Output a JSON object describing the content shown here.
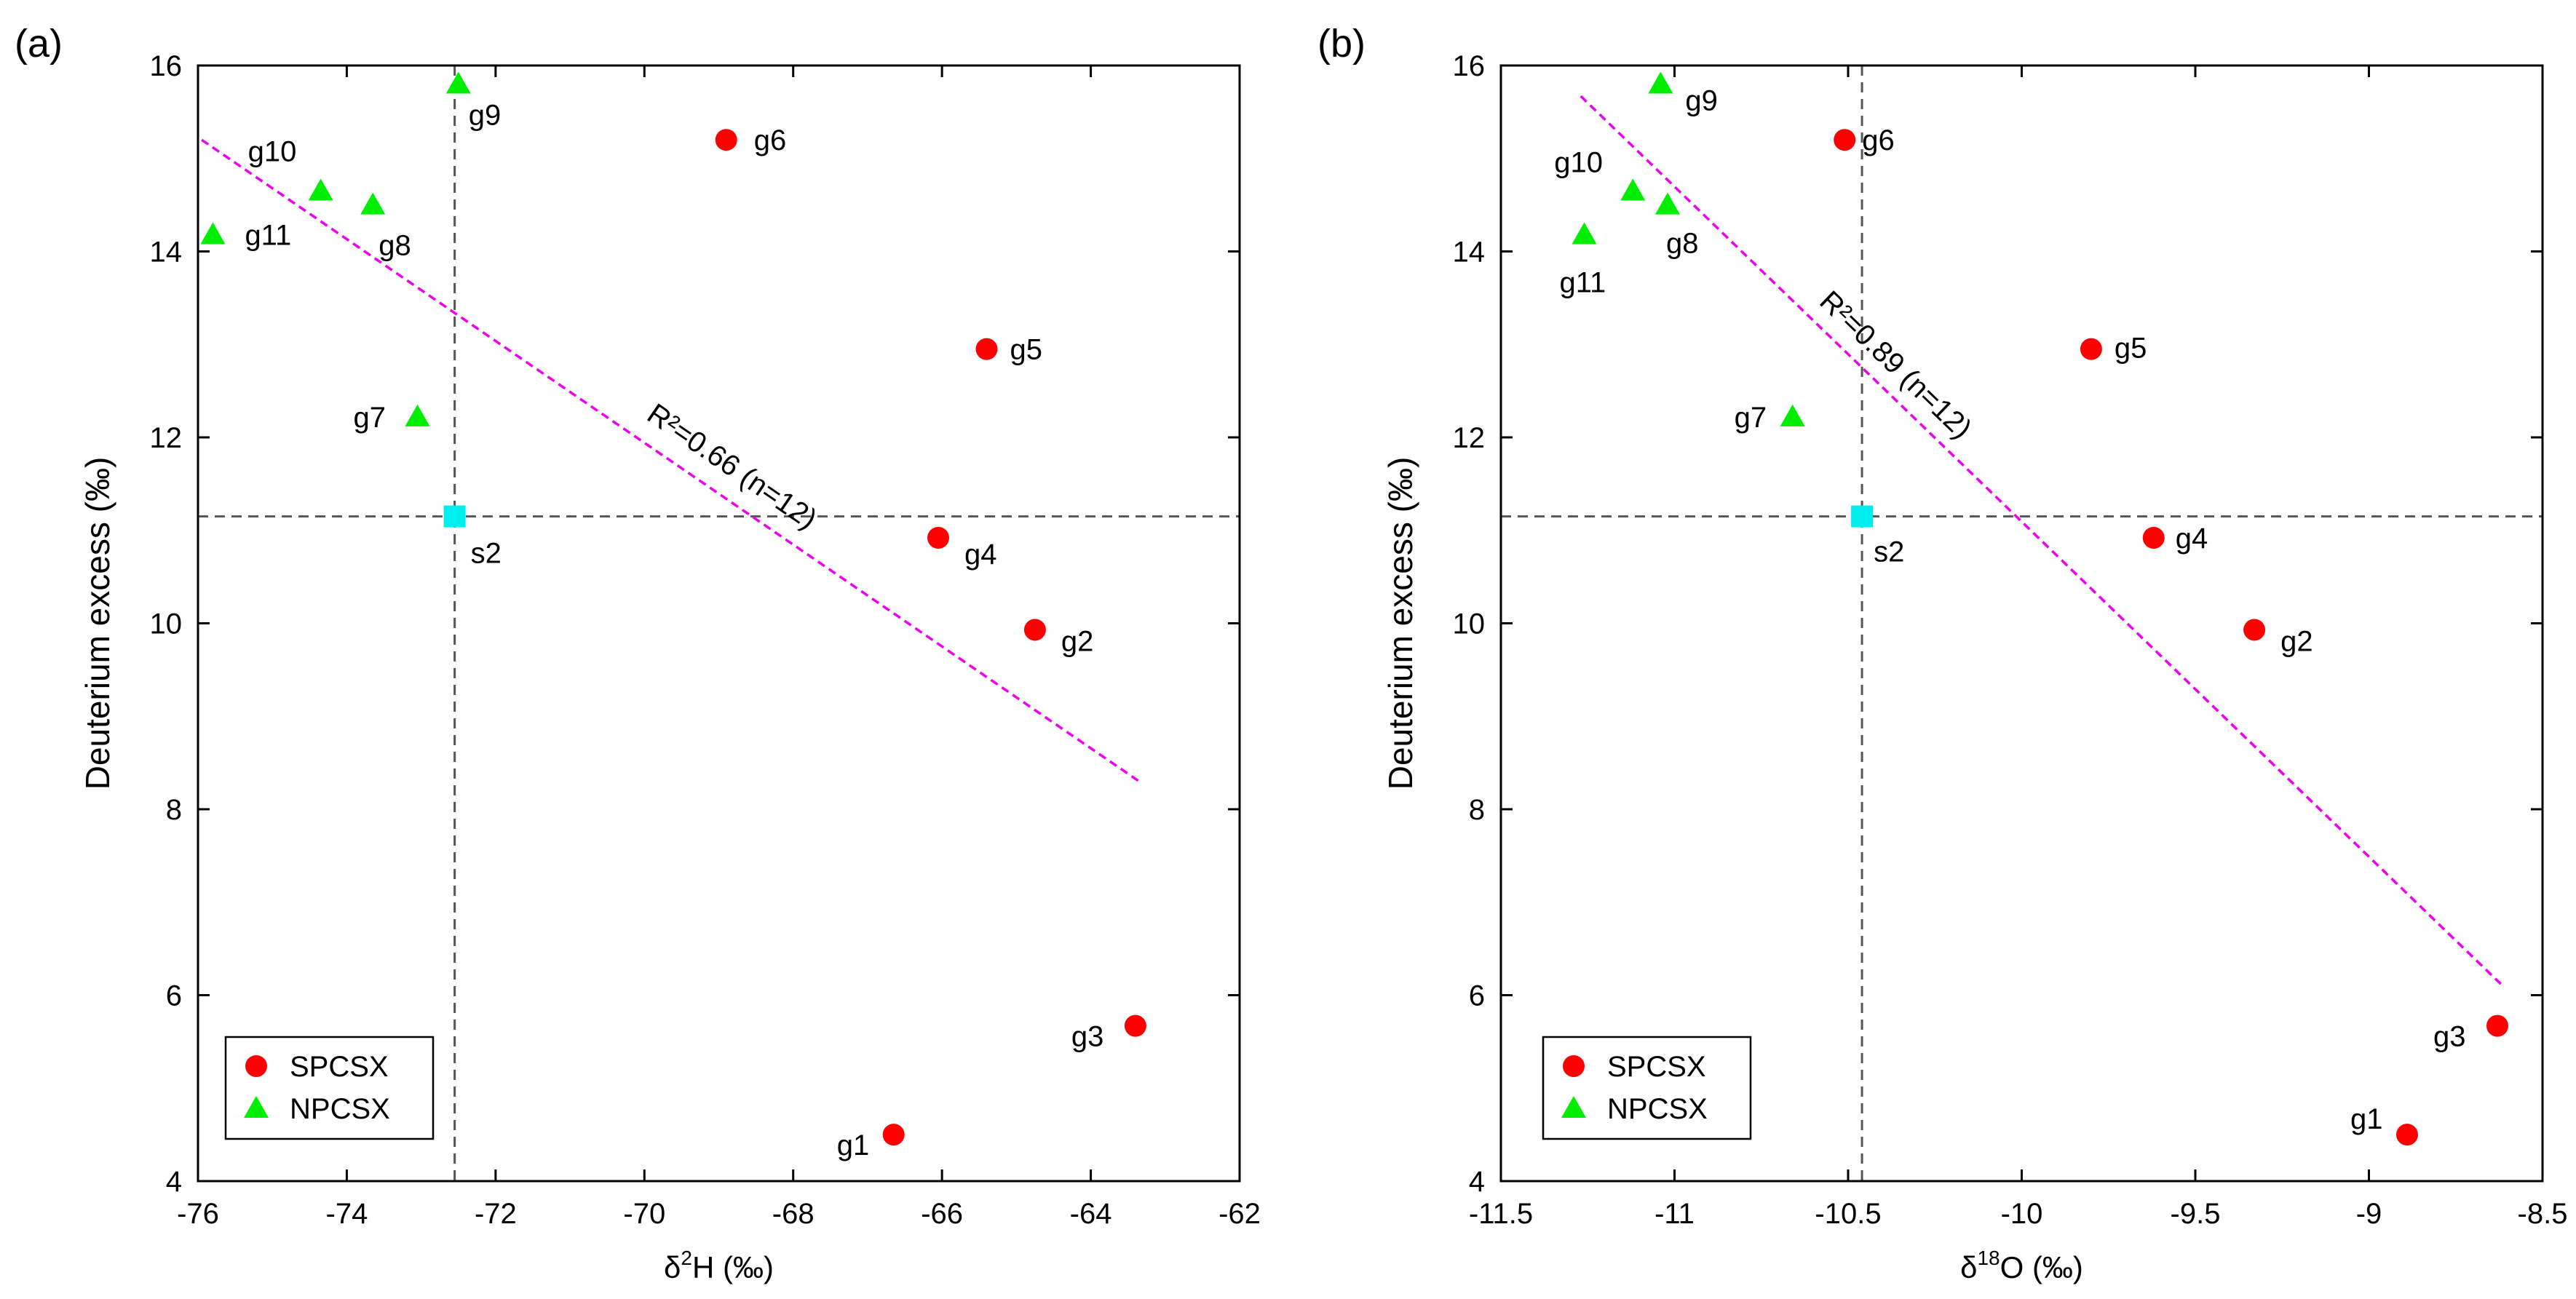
{
  "chart_data": [
    {
      "type": "scatter",
      "panel_label": "(a)",
      "xlabel_prefix": "δ",
      "xlabel_sup": "2",
      "xlabel_suffix": "H (‰)",
      "ylabel": "Deuterium excess (‰)",
      "xlim": [
        -76,
        -62
      ],
      "ylim": [
        4,
        16
      ],
      "xticks": [
        -76,
        -74,
        -72,
        -70,
        -68,
        -66,
        -64,
        -62
      ],
      "xtick_labels": [
        "-76",
        "-74",
        "-72",
        "-70",
        "-68",
        "-66",
        "-64",
        "-62"
      ],
      "yticks": [
        4,
        6,
        8,
        10,
        12,
        14,
        16
      ],
      "ytick_labels": [
        "4",
        "6",
        "8",
        "10",
        "12",
        "14",
        "16"
      ],
      "ref_vline": -72.55,
      "ref_hline": 11.15,
      "series": [
        {
          "name": "SPCSX",
          "marker": "circle",
          "color": "#ff0000",
          "points": [
            {
              "label": "g1",
              "x": -66.65,
              "y": 4.5
            },
            {
              "label": "g2",
              "x": -64.75,
              "y": 9.93
            },
            {
              "label": "g3",
              "x": -63.4,
              "y": 5.67
            },
            {
              "label": "g4",
              "x": -66.05,
              "y": 10.92
            },
            {
              "label": "g5",
              "x": -65.4,
              "y": 12.95
            },
            {
              "label": "g6",
              "x": -68.9,
              "y": 15.2
            }
          ]
        },
        {
          "name": "NPCSX",
          "marker": "triangle",
          "color": "#00ee00",
          "points": [
            {
              "label": "g7",
              "x": -73.05,
              "y": 12.22
            },
            {
              "label": "g8",
              "x": -73.65,
              "y": 14.5
            },
            {
              "label": "g9",
              "x": -72.5,
              "y": 15.8
            },
            {
              "label": "g10",
              "x": -74.35,
              "y": 14.65
            },
            {
              "label": "g11",
              "x": -75.8,
              "y": 14.18
            }
          ]
        },
        {
          "name": "s2",
          "marker": "square",
          "color": "#00eeee",
          "in_legend": false,
          "points": [
            {
              "label": "s2",
              "x": -72.55,
              "y": 11.15
            }
          ]
        }
      ],
      "regression": {
        "x": [
          -75.95,
          -63.35
        ],
        "y": [
          15.2,
          8.3
        ],
        "label": "R²=0.66 (n=12)",
        "color": "#ee00ee"
      },
      "legend": {
        "position": "bottom-left",
        "entries": [
          "SPCSX",
          "NPCSX"
        ]
      }
    },
    {
      "type": "scatter",
      "panel_label": "(b)",
      "xlabel_prefix": "δ",
      "xlabel_sup": "18",
      "xlabel_suffix": "O (‰)",
      "ylabel": "Deuterium excess (‰)",
      "xlim": [
        -11.5,
        -8.5
      ],
      "ylim": [
        4,
        16
      ],
      "xticks": [
        -11.5,
        -11,
        -10.5,
        -10,
        -9.5,
        -9,
        -8.5
      ],
      "xtick_labels": [
        "-11.5",
        "-11",
        "-10.5",
        "-10",
        "-9.5",
        "-9",
        "-8.5"
      ],
      "yticks": [
        4,
        6,
        8,
        10,
        12,
        14,
        16
      ],
      "ytick_labels": [
        "4",
        "6",
        "8",
        "10",
        "12",
        "14",
        "16"
      ],
      "ref_vline": -10.46,
      "ref_hline": 11.15,
      "series": [
        {
          "name": "SPCSX",
          "marker": "circle",
          "color": "#ff0000",
          "points": [
            {
              "label": "g1",
              "x": -8.89,
              "y": 4.5
            },
            {
              "label": "g2",
              "x": -9.33,
              "y": 9.93
            },
            {
              "label": "g3",
              "x": -8.63,
              "y": 5.67
            },
            {
              "label": "g4",
              "x": -9.62,
              "y": 10.92
            },
            {
              "label": "g5",
              "x": -9.8,
              "y": 12.95
            },
            {
              "label": "g6",
              "x": -10.51,
              "y": 15.2
            }
          ]
        },
        {
          "name": "NPCSX",
          "marker": "triangle",
          "color": "#00ee00",
          "points": [
            {
              "label": "g7",
              "x": -10.66,
              "y": 12.22
            },
            {
              "label": "g8",
              "x": -11.02,
              "y": 14.5
            },
            {
              "label": "g9",
              "x": -11.04,
              "y": 15.8
            },
            {
              "label": "g10",
              "x": -11.12,
              "y": 14.65
            },
            {
              "label": "g11",
              "x": -11.26,
              "y": 14.18
            }
          ]
        },
        {
          "name": "s2",
          "marker": "square",
          "color": "#00eeee",
          "in_legend": false,
          "points": [
            {
              "label": "s2",
              "x": -10.46,
              "y": 11.15
            }
          ]
        }
      ],
      "regression": {
        "x": [
          -11.27,
          -8.62
        ],
        "y": [
          15.67,
          6.12
        ],
        "label": "R²=0.89 (n=12)",
        "color": "#ee00ee"
      },
      "legend": {
        "position": "bottom-left",
        "entries": [
          "SPCSX",
          "NPCSX"
        ]
      }
    }
  ]
}
